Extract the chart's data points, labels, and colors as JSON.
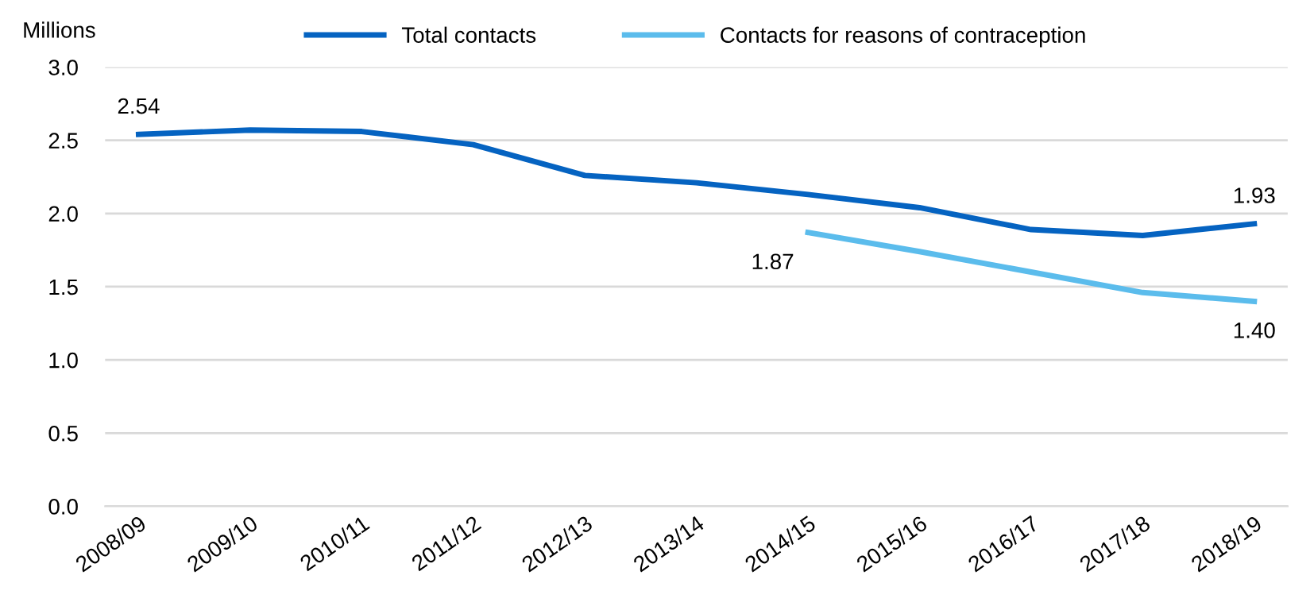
{
  "chart_data": {
    "type": "line",
    "ylabel": "Millions",
    "categories": [
      "2008/09",
      "2009/10",
      "2010/11",
      "2011/12",
      "2012/13",
      "2013/14",
      "2014/15",
      "2015/16",
      "2016/17",
      "2017/18",
      "2018/19"
    ],
    "series": [
      {
        "name": "Total contacts",
        "color": "#0563c1",
        "values": [
          2.54,
          2.57,
          2.56,
          2.47,
          2.26,
          2.21,
          2.13,
          2.04,
          1.89,
          1.85,
          1.93
        ],
        "value_labels": [
          "2.54",
          null,
          null,
          null,
          null,
          null,
          null,
          null,
          null,
          null,
          "1.93"
        ]
      },
      {
        "name": "Contacts for reasons of contraception",
        "color": "#5bbcec",
        "values": [
          null,
          null,
          null,
          null,
          null,
          null,
          1.87,
          1.74,
          1.6,
          1.46,
          1.4
        ],
        "value_labels": [
          null,
          null,
          null,
          null,
          null,
          null,
          "1.87",
          null,
          null,
          null,
          "1.40"
        ]
      }
    ],
    "ylim": [
      0,
      3
    ],
    "yticks": [
      {
        "value": 0,
        "label": "0.0"
      },
      {
        "value": 0.5,
        "label": "0.5"
      },
      {
        "value": 1,
        "label": "1.0"
      },
      {
        "value": 1.5,
        "label": "1.5"
      },
      {
        "value": 2,
        "label": "2.0"
      },
      {
        "value": 2.5,
        "label": "2.5"
      },
      {
        "value": 3,
        "label": "3.0"
      }
    ],
    "grid": "y",
    "legend": "top",
    "marker": "none",
    "line_style": "solid"
  }
}
